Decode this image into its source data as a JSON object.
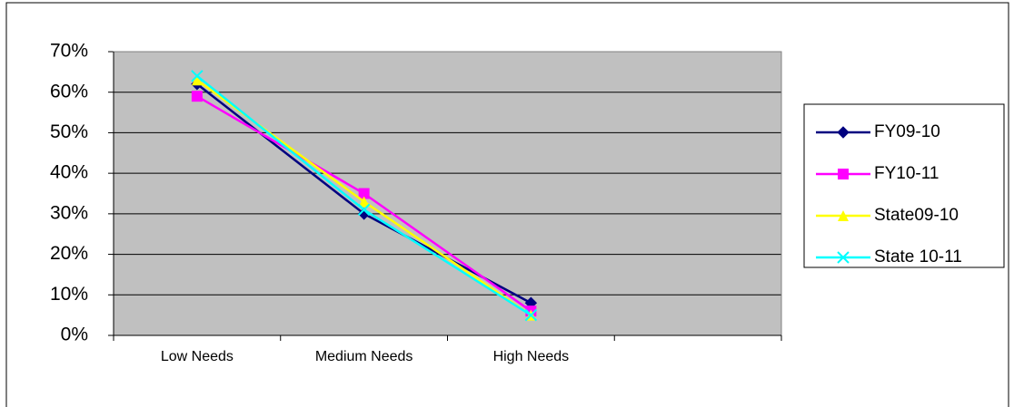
{
  "chart_data": {
    "type": "line",
    "categories": [
      "Low Needs",
      "Medium Needs",
      "High Needs",
      null
    ],
    "series": [
      {
        "name": "FY09-10",
        "color": "#000080",
        "marker": "diamond",
        "values": [
          62,
          30,
          8,
          null
        ]
      },
      {
        "name": "FY10-11",
        "color": "#ff00ff",
        "marker": "square",
        "values": [
          59,
          35,
          6,
          null
        ]
      },
      {
        "name": "State09-10",
        "color": "#ffff00",
        "marker": "triangle",
        "values": [
          63,
          33,
          5,
          null
        ]
      },
      {
        "name": "State 10-11",
        "color": "#00ffff",
        "marker": "x",
        "values": [
          64,
          31,
          5,
          null
        ]
      }
    ],
    "ylim": [
      0,
      70
    ],
    "yticks": [
      {
        "value": 0,
        "label": "0%"
      },
      {
        "value": 10,
        "label": "10%"
      },
      {
        "value": 20,
        "label": "20%"
      },
      {
        "value": 30,
        "label": "30%"
      },
      {
        "value": 40,
        "label": "40%"
      },
      {
        "value": 50,
        "label": "50%"
      },
      {
        "value": 60,
        "label": "60%"
      },
      {
        "value": 70,
        "label": "70%"
      }
    ],
    "grid": true,
    "plot_background": "#c0c0c0",
    "legend": "right"
  }
}
